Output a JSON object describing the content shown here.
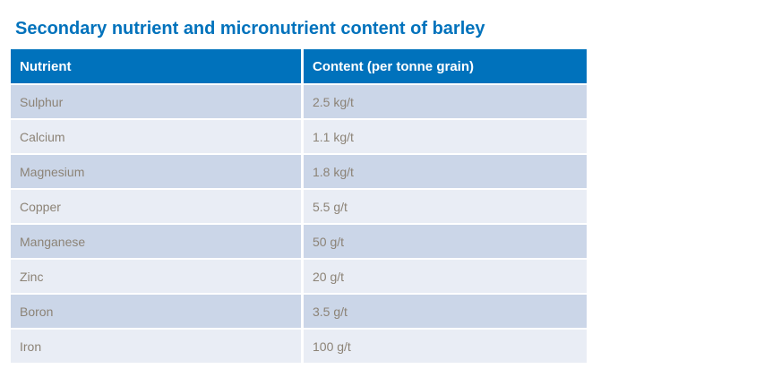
{
  "title": "Secondary nutrient and micronutrient content of barley",
  "colors": {
    "title_blue": "#0072BC",
    "header_bg": "#0072BC",
    "header_text": "#FFFFFF",
    "row_dark": "#CBD6E8",
    "row_light": "#E9EDF5",
    "cell_text": "#8C8376",
    "page_bg": "#FFFFFF"
  },
  "table": {
    "headers": [
      "Nutrient",
      "Content (per tonne grain)"
    ],
    "rows": [
      {
        "nutrient": "Sulphur",
        "content": "2.5 kg/t"
      },
      {
        "nutrient": "Calcium",
        "content": "1.1 kg/t"
      },
      {
        "nutrient": "Magnesium",
        "content": "1.8 kg/t"
      },
      {
        "nutrient": "Copper",
        "content": "5.5 g/t"
      },
      {
        "nutrient": "Manganese",
        "content": "50 g/t"
      },
      {
        "nutrient": "Zinc",
        "content": "20 g/t"
      },
      {
        "nutrient": "Boron",
        "content": "3.5 g/t"
      },
      {
        "nutrient": "Iron",
        "content": "100 g/t"
      }
    ]
  }
}
